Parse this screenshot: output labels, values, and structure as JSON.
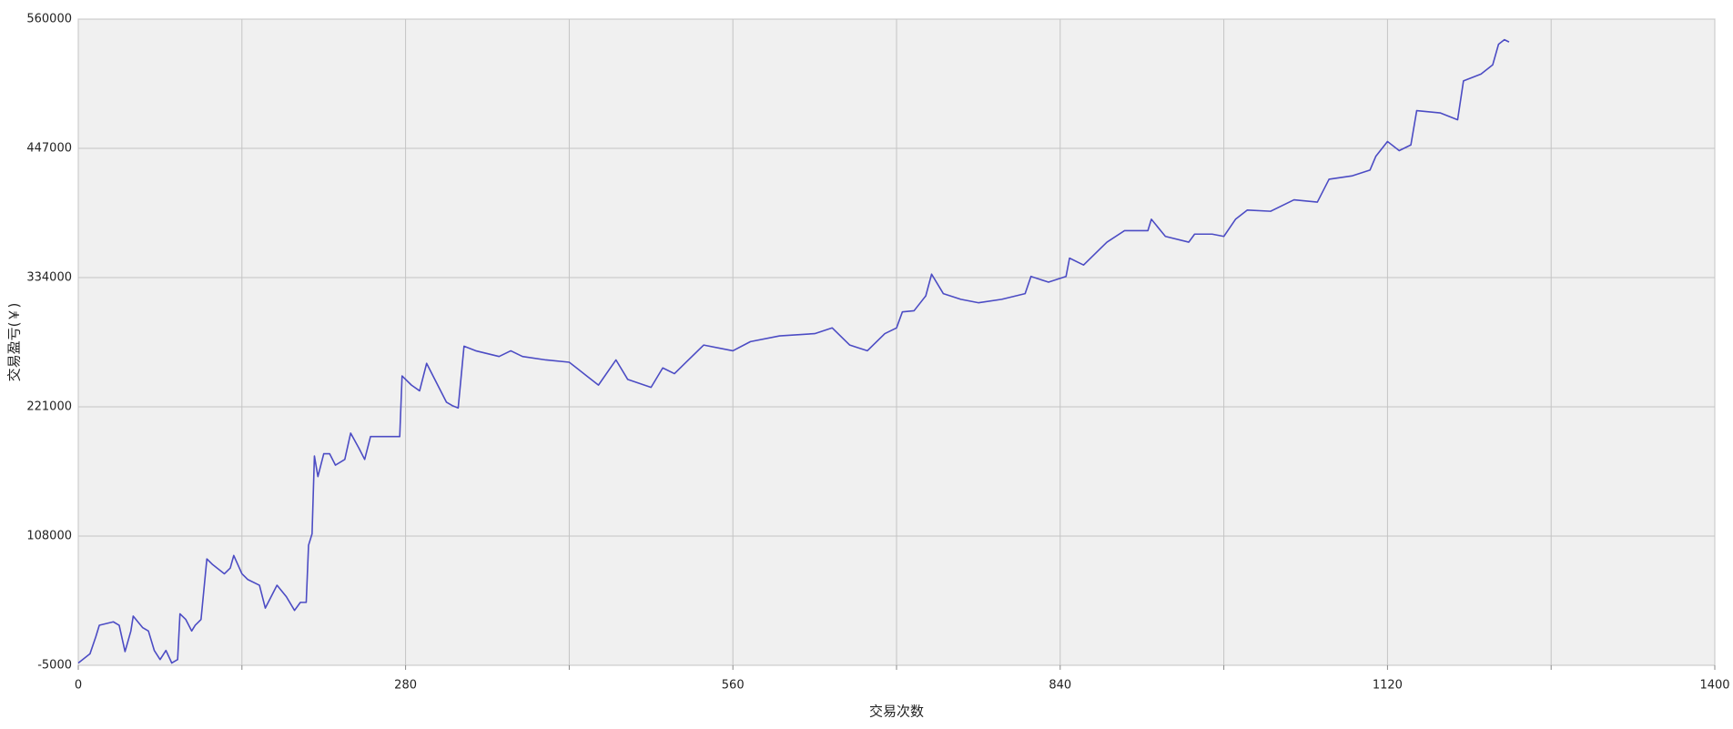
{
  "chart_data": {
    "type": "line",
    "xlabel": "交易次数",
    "ylabel": "交易盈亏(￥)",
    "xlim": [
      0,
      1400
    ],
    "xticks": [
      0,
      280,
      560,
      840,
      1120,
      1400
    ],
    "xminorticks": [
      140,
      420,
      700,
      980,
      1260
    ],
    "ylim": [
      -5000,
      560000
    ],
    "yticks": [
      -5000,
      108000,
      221000,
      334000,
      447000,
      560000
    ],
    "grid": true,
    "color": "#4c4cc4",
    "x": [
      0,
      10,
      15,
      18,
      30,
      35,
      40,
      45,
      47,
      55,
      60,
      65,
      70,
      75,
      80,
      85,
      87,
      92,
      97,
      100,
      105,
      110,
      115,
      125,
      130,
      133,
      140,
      145,
      155,
      160,
      170,
      178,
      185,
      190,
      195,
      197,
      200,
      202,
      205,
      210,
      215,
      220,
      228,
      233,
      240,
      245,
      250,
      260,
      275,
      277,
      285,
      292,
      298,
      305,
      315,
      320,
      325,
      330,
      340,
      360,
      370,
      380,
      400,
      420,
      435,
      445,
      460,
      470,
      490,
      500,
      510,
      520,
      535,
      560,
      575,
      600,
      630,
      645,
      660,
      675,
      690,
      700,
      705,
      715,
      725,
      730,
      740,
      755,
      770,
      790,
      810,
      815,
      830,
      845,
      848,
      860,
      875,
      880,
      895,
      915,
      918,
      930,
      950,
      955,
      970,
      980,
      990,
      1000,
      1020,
      1040,
      1060,
      1070,
      1090,
      1105,
      1110,
      1120,
      1130,
      1140,
      1145,
      1165,
      1180,
      1185,
      1200,
      1210,
      1215,
      1220,
      1224
    ],
    "values": [
      -3000,
      5000,
      20000,
      30000,
      33000,
      30000,
      7000,
      25000,
      38000,
      28000,
      25000,
      8000,
      0,
      8000,
      -3000,
      0,
      40000,
      35000,
      25000,
      30000,
      35000,
      88000,
      83000,
      75000,
      80000,
      91000,
      75000,
      70000,
      65000,
      45000,
      65000,
      55000,
      43000,
      50000,
      50000,
      100000,
      110000,
      178000,
      160000,
      180000,
      180000,
      170000,
      175000,
      198000,
      185000,
      175000,
      195000,
      195000,
      195000,
      248000,
      240000,
      235000,
      259000,
      245000,
      225000,
      222000,
      220000,
      274000,
      270000,
      265000,
      270000,
      265000,
      262000,
      260000,
      248000,
      240000,
      262000,
      245000,
      238000,
      255000,
      250000,
      260000,
      275000,
      270000,
      278000,
      283000,
      285000,
      290000,
      275000,
      270000,
      285000,
      290000,
      304000,
      305000,
      318000,
      337000,
      320000,
      315000,
      312000,
      315000,
      320000,
      335000,
      330000,
      335000,
      351000,
      345000,
      360000,
      365000,
      375000,
      375000,
      385000,
      370000,
      365000,
      372000,
      372000,
      370000,
      385000,
      393000,
      392000,
      402000,
      400000,
      420000,
      423000,
      428000,
      440000,
      453000,
      445000,
      450000,
      480000,
      478000,
      472000,
      506000,
      512000,
      520000,
      538000,
      542000,
      540000
    ]
  }
}
